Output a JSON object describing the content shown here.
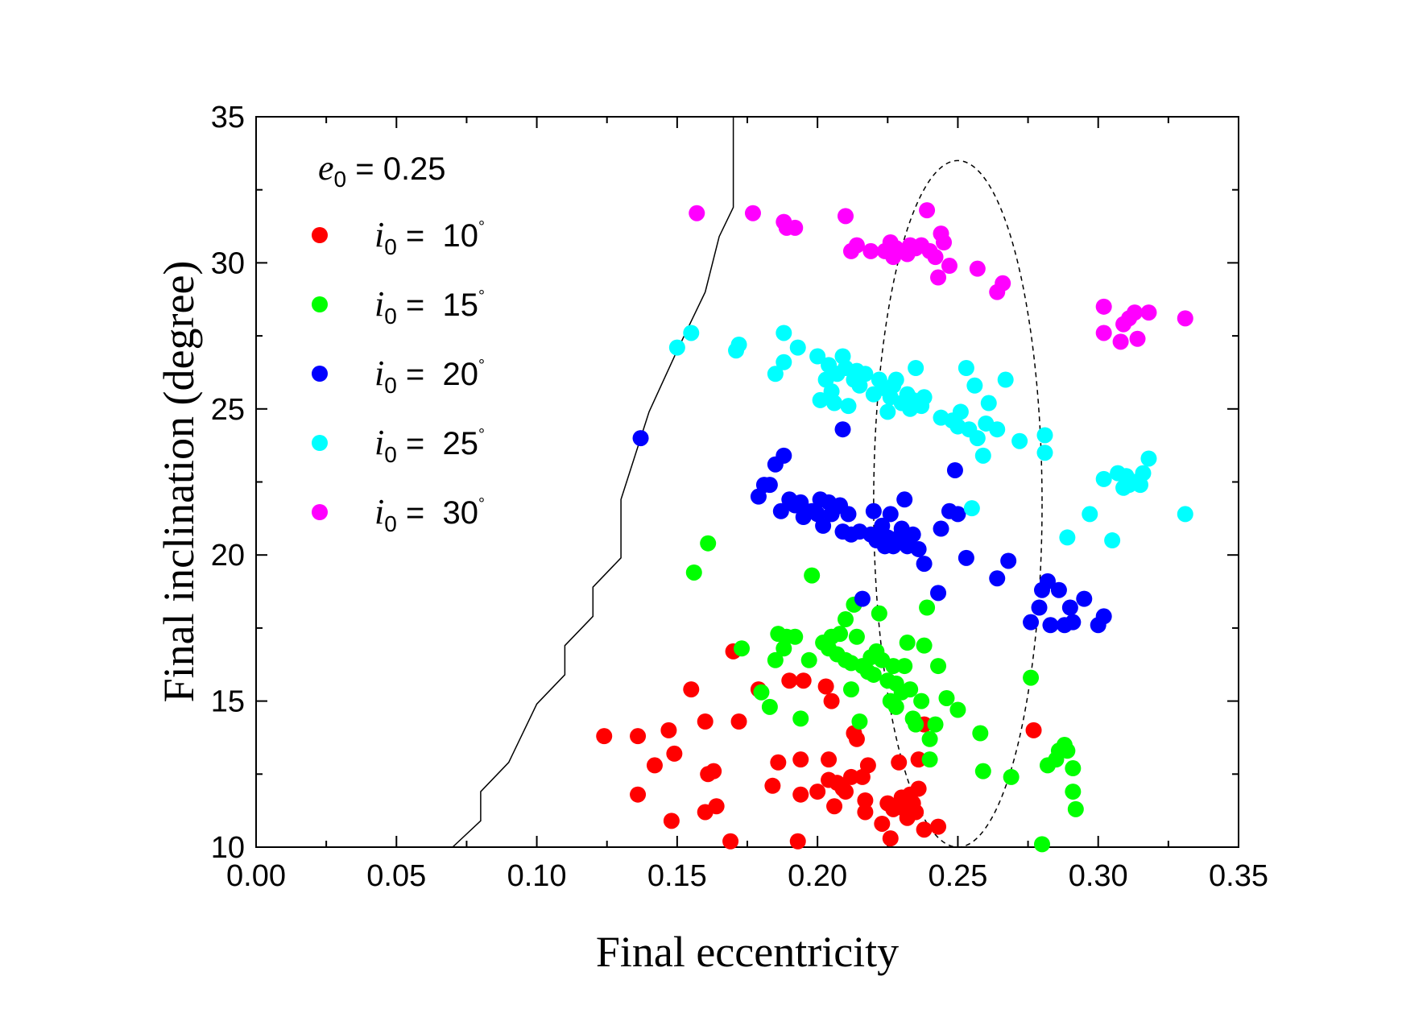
{
  "chart_data": {
    "type": "scatter",
    "xlabel": "Final eccentricity",
    "ylabel": "Final inclination (degree)",
    "xlim": [
      0.0,
      0.35
    ],
    "ylim": [
      10,
      35
    ],
    "x_ticks": [
      "0.00",
      "0.05",
      "0.10",
      "0.15",
      "0.20",
      "0.25",
      "0.30",
      "0.35"
    ],
    "y_ticks": [
      "10",
      "15",
      "20",
      "25",
      "30",
      "35"
    ],
    "legend_title": {
      "symbol": "e",
      "subscript": "0",
      "text": " = 0.25"
    },
    "series": [
      {
        "name": "i0 = 10°",
        "label_symbol": "i",
        "label_sub": "0",
        "label_value": " = 10",
        "label_degree": "°",
        "color": "#ff0000",
        "points": [
          [
            0.124,
            13.8
          ],
          [
            0.136,
            13.8
          ],
          [
            0.136,
            11.8
          ],
          [
            0.142,
            12.8
          ],
          [
            0.147,
            14.0
          ],
          [
            0.148,
            10.9
          ],
          [
            0.149,
            13.2
          ],
          [
            0.155,
            15.4
          ],
          [
            0.16,
            14.3
          ],
          [
            0.16,
            11.2
          ],
          [
            0.161,
            12.5
          ],
          [
            0.163,
            12.6
          ],
          [
            0.164,
            11.4
          ],
          [
            0.169,
            10.2
          ],
          [
            0.17,
            16.7
          ],
          [
            0.172,
            14.3
          ],
          [
            0.179,
            15.4
          ],
          [
            0.184,
            12.1
          ],
          [
            0.186,
            12.9
          ],
          [
            0.19,
            15.7
          ],
          [
            0.193,
            10.2
          ],
          [
            0.194,
            13.0
          ],
          [
            0.194,
            11.8
          ],
          [
            0.195,
            15.7
          ],
          [
            0.2,
            11.9
          ],
          [
            0.203,
            15.5
          ],
          [
            0.204,
            13.0
          ],
          [
            0.204,
            12.3
          ],
          [
            0.205,
            15.0
          ],
          [
            0.206,
            11.4
          ],
          [
            0.207,
            12.2
          ],
          [
            0.209,
            12.0
          ],
          [
            0.21,
            11.9
          ],
          [
            0.212,
            12.4
          ],
          [
            0.213,
            13.9
          ],
          [
            0.214,
            13.7
          ],
          [
            0.216,
            12.4
          ],
          [
            0.217,
            11.6
          ],
          [
            0.217,
            11.2
          ],
          [
            0.218,
            12.8
          ],
          [
            0.223,
            10.8
          ],
          [
            0.225,
            11.5
          ],
          [
            0.226,
            10.3
          ],
          [
            0.227,
            11.3
          ],
          [
            0.229,
            12.9
          ],
          [
            0.23,
            11.7
          ],
          [
            0.231,
            11.3
          ],
          [
            0.232,
            11.0
          ],
          [
            0.233,
            11.8
          ],
          [
            0.234,
            11.5
          ],
          [
            0.235,
            11.2
          ],
          [
            0.236,
            12.0
          ],
          [
            0.236,
            13.0
          ],
          [
            0.238,
            14.2
          ],
          [
            0.238,
            10.6
          ],
          [
            0.243,
            10.7
          ],
          [
            0.277,
            14.0
          ]
        ]
      },
      {
        "name": "i0 = 15°",
        "label_symbol": "i",
        "label_sub": "0",
        "label_value": " = 15",
        "label_degree": "°",
        "color": "#00ff00",
        "points": [
          [
            0.156,
            19.4
          ],
          [
            0.161,
            20.4
          ],
          [
            0.173,
            16.8
          ],
          [
            0.18,
            15.3
          ],
          [
            0.183,
            14.8
          ],
          [
            0.185,
            16.4
          ],
          [
            0.186,
            17.3
          ],
          [
            0.188,
            16.8
          ],
          [
            0.189,
            17.2
          ],
          [
            0.192,
            17.2
          ],
          [
            0.194,
            14.4
          ],
          [
            0.197,
            16.4
          ],
          [
            0.198,
            19.3
          ],
          [
            0.202,
            17.0
          ],
          [
            0.204,
            16.8
          ],
          [
            0.205,
            17.2
          ],
          [
            0.207,
            16.6
          ],
          [
            0.208,
            17.3
          ],
          [
            0.21,
            16.4
          ],
          [
            0.21,
            17.8
          ],
          [
            0.212,
            16.3
          ],
          [
            0.212,
            15.4
          ],
          [
            0.213,
            18.3
          ],
          [
            0.214,
            17.2
          ],
          [
            0.215,
            14.3
          ],
          [
            0.216,
            16.2
          ],
          [
            0.218,
            16.0
          ],
          [
            0.219,
            16.5
          ],
          [
            0.22,
            15.9
          ],
          [
            0.221,
            16.7
          ],
          [
            0.222,
            18.0
          ],
          [
            0.223,
            16.4
          ],
          [
            0.225,
            15.7
          ],
          [
            0.226,
            15.0
          ],
          [
            0.227,
            16.2
          ],
          [
            0.228,
            15.6
          ],
          [
            0.228,
            14.8
          ],
          [
            0.23,
            15.3
          ],
          [
            0.231,
            16.2
          ],
          [
            0.232,
            17.0
          ],
          [
            0.233,
            15.4
          ],
          [
            0.234,
            14.4
          ],
          [
            0.235,
            14.2
          ],
          [
            0.237,
            15.0
          ],
          [
            0.238,
            16.9
          ],
          [
            0.239,
            18.2
          ],
          [
            0.24,
            13.7
          ],
          [
            0.24,
            13.0
          ],
          [
            0.242,
            14.2
          ],
          [
            0.243,
            16.2
          ],
          [
            0.246,
            15.1
          ],
          [
            0.25,
            14.7
          ],
          [
            0.258,
            13.9
          ],
          [
            0.259,
            12.6
          ],
          [
            0.269,
            12.4
          ],
          [
            0.276,
            15.8
          ],
          [
            0.28,
            10.1
          ],
          [
            0.282,
            12.8
          ],
          [
            0.285,
            13.0
          ],
          [
            0.286,
            13.3
          ],
          [
            0.288,
            13.5
          ],
          [
            0.289,
            13.3
          ],
          [
            0.291,
            11.9
          ],
          [
            0.291,
            12.7
          ],
          [
            0.292,
            11.3
          ]
        ]
      },
      {
        "name": "i0 = 20°",
        "label_symbol": "i",
        "label_sub": "0",
        "label_value": " = 20",
        "label_degree": "°",
        "color": "#0000ff",
        "points": [
          [
            0.137,
            24.0
          ],
          [
            0.179,
            22.0
          ],
          [
            0.181,
            22.4
          ],
          [
            0.183,
            22.4
          ],
          [
            0.185,
            23.1
          ],
          [
            0.187,
            21.5
          ],
          [
            0.188,
            23.4
          ],
          [
            0.19,
            21.9
          ],
          [
            0.192,
            21.7
          ],
          [
            0.194,
            21.8
          ],
          [
            0.195,
            21.3
          ],
          [
            0.196,
            21.5
          ],
          [
            0.198,
            21.5
          ],
          [
            0.2,
            21.4
          ],
          [
            0.201,
            21.9
          ],
          [
            0.202,
            21.0
          ],
          [
            0.204,
            21.8
          ],
          [
            0.205,
            21.4
          ],
          [
            0.206,
            21.6
          ],
          [
            0.208,
            21.7
          ],
          [
            0.209,
            20.8
          ],
          [
            0.209,
            24.3
          ],
          [
            0.211,
            21.4
          ],
          [
            0.212,
            20.7
          ],
          [
            0.215,
            20.8
          ],
          [
            0.216,
            18.5
          ],
          [
            0.219,
            20.7
          ],
          [
            0.22,
            21.5
          ],
          [
            0.221,
            20.5
          ],
          [
            0.223,
            21.0
          ],
          [
            0.224,
            20.3
          ],
          [
            0.225,
            20.6
          ],
          [
            0.226,
            21.4
          ],
          [
            0.227,
            20.3
          ],
          [
            0.228,
            20.4
          ],
          [
            0.229,
            20.6
          ],
          [
            0.23,
            20.9
          ],
          [
            0.231,
            21.9
          ],
          [
            0.232,
            20.3
          ],
          [
            0.234,
            20.7
          ],
          [
            0.236,
            20.2
          ],
          [
            0.238,
            19.7
          ],
          [
            0.243,
            18.7
          ],
          [
            0.244,
            20.9
          ],
          [
            0.247,
            21.5
          ],
          [
            0.249,
            22.9
          ],
          [
            0.25,
            21.4
          ],
          [
            0.253,
            19.9
          ],
          [
            0.264,
            19.2
          ],
          [
            0.268,
            19.8
          ],
          [
            0.276,
            17.7
          ],
          [
            0.279,
            18.2
          ],
          [
            0.28,
            18.8
          ],
          [
            0.282,
            19.1
          ],
          [
            0.283,
            17.6
          ],
          [
            0.286,
            18.8
          ],
          [
            0.288,
            17.6
          ],
          [
            0.29,
            18.2
          ],
          [
            0.291,
            17.7
          ],
          [
            0.295,
            18.5
          ],
          [
            0.3,
            17.6
          ],
          [
            0.302,
            17.9
          ]
        ]
      },
      {
        "name": "i0 = 25°",
        "label_symbol": "i",
        "label_sub": "0",
        "label_value": " = 25",
        "label_degree": "°",
        "color": "#00ffff",
        "points": [
          [
            0.15,
            27.1
          ],
          [
            0.155,
            27.6
          ],
          [
            0.171,
            27.0
          ],
          [
            0.172,
            27.2
          ],
          [
            0.185,
            26.2
          ],
          [
            0.188,
            27.6
          ],
          [
            0.188,
            26.6
          ],
          [
            0.193,
            27.1
          ],
          [
            0.2,
            26.8
          ],
          [
            0.201,
            25.3
          ],
          [
            0.203,
            26.0
          ],
          [
            0.204,
            26.5
          ],
          [
            0.205,
            25.6
          ],
          [
            0.206,
            25.2
          ],
          [
            0.207,
            26.2
          ],
          [
            0.209,
            26.8
          ],
          [
            0.21,
            26.4
          ],
          [
            0.211,
            25.1
          ],
          [
            0.213,
            26.0
          ],
          [
            0.214,
            26.3
          ],
          [
            0.215,
            25.8
          ],
          [
            0.217,
            26.2
          ],
          [
            0.22,
            25.5
          ],
          [
            0.222,
            26.0
          ],
          [
            0.224,
            25.7
          ],
          [
            0.225,
            24.9
          ],
          [
            0.226,
            25.4
          ],
          [
            0.227,
            25.8
          ],
          [
            0.228,
            26.0
          ],
          [
            0.23,
            25.2
          ],
          [
            0.232,
            25.5
          ],
          [
            0.233,
            25.0
          ],
          [
            0.234,
            25.3
          ],
          [
            0.235,
            26.4
          ],
          [
            0.237,
            25.1
          ],
          [
            0.238,
            25.4
          ],
          [
            0.244,
            24.7
          ],
          [
            0.248,
            24.6
          ],
          [
            0.25,
            24.4
          ],
          [
            0.251,
            24.9
          ],
          [
            0.253,
            26.4
          ],
          [
            0.254,
            24.3
          ],
          [
            0.255,
            21.6
          ],
          [
            0.256,
            25.8
          ],
          [
            0.257,
            24.0
          ],
          [
            0.259,
            23.4
          ],
          [
            0.26,
            24.5
          ],
          [
            0.261,
            25.2
          ],
          [
            0.264,
            24.3
          ],
          [
            0.267,
            26.0
          ],
          [
            0.272,
            23.9
          ],
          [
            0.281,
            24.1
          ],
          [
            0.281,
            23.5
          ],
          [
            0.289,
            20.6
          ],
          [
            0.297,
            21.4
          ],
          [
            0.302,
            22.6
          ],
          [
            0.305,
            20.5
          ],
          [
            0.307,
            22.8
          ],
          [
            0.309,
            22.3
          ],
          [
            0.31,
            22.7
          ],
          [
            0.311,
            22.4
          ],
          [
            0.313,
            22.5
          ],
          [
            0.315,
            22.4
          ],
          [
            0.316,
            22.8
          ],
          [
            0.318,
            23.3
          ],
          [
            0.331,
            21.4
          ]
        ]
      },
      {
        "name": "i0 = 30°",
        "label_symbol": "i",
        "label_sub": "0",
        "label_value": " = 30",
        "label_degree": "°",
        "color": "#ff00ff",
        "points": [
          [
            0.157,
            31.7
          ],
          [
            0.177,
            31.7
          ],
          [
            0.188,
            31.4
          ],
          [
            0.189,
            31.2
          ],
          [
            0.192,
            31.2
          ],
          [
            0.21,
            31.6
          ],
          [
            0.212,
            30.4
          ],
          [
            0.214,
            30.6
          ],
          [
            0.219,
            30.4
          ],
          [
            0.224,
            30.4
          ],
          [
            0.226,
            30.7
          ],
          [
            0.227,
            30.2
          ],
          [
            0.228,
            30.5
          ],
          [
            0.232,
            30.3
          ],
          [
            0.233,
            30.6
          ],
          [
            0.235,
            30.5
          ],
          [
            0.237,
            30.6
          ],
          [
            0.239,
            31.8
          ],
          [
            0.24,
            30.4
          ],
          [
            0.242,
            30.2
          ],
          [
            0.243,
            29.5
          ],
          [
            0.244,
            31.0
          ],
          [
            0.245,
            30.7
          ],
          [
            0.247,
            29.9
          ],
          [
            0.257,
            29.8
          ],
          [
            0.264,
            29.0
          ],
          [
            0.266,
            29.3
          ],
          [
            0.302,
            28.5
          ],
          [
            0.302,
            27.6
          ],
          [
            0.308,
            27.3
          ],
          [
            0.309,
            27.9
          ],
          [
            0.311,
            28.1
          ],
          [
            0.313,
            28.3
          ],
          [
            0.314,
            27.4
          ],
          [
            0.318,
            28.3
          ],
          [
            0.331,
            28.1
          ]
        ]
      }
    ],
    "boundary_line": [
      [
        0.07,
        10
      ],
      [
        0.08,
        10.9
      ],
      [
        0.08,
        11.9
      ],
      [
        0.09,
        12.9
      ],
      [
        0.1,
        14.9
      ],
      [
        0.11,
        15.9
      ],
      [
        0.11,
        16.9
      ],
      [
        0.12,
        17.9
      ],
      [
        0.12,
        18.9
      ],
      [
        0.13,
        19.9
      ],
      [
        0.13,
        21.9
      ],
      [
        0.14,
        24.9
      ],
      [
        0.15,
        27.0
      ],
      [
        0.16,
        29.0
      ],
      [
        0.165,
        30.9
      ],
      [
        0.17,
        31.9
      ],
      [
        0.17,
        35
      ]
    ],
    "ellipse": {
      "center": [
        0.25,
        21.75
      ],
      "rx": 0.03,
      "ry": 11.75,
      "style": "dashed"
    }
  }
}
